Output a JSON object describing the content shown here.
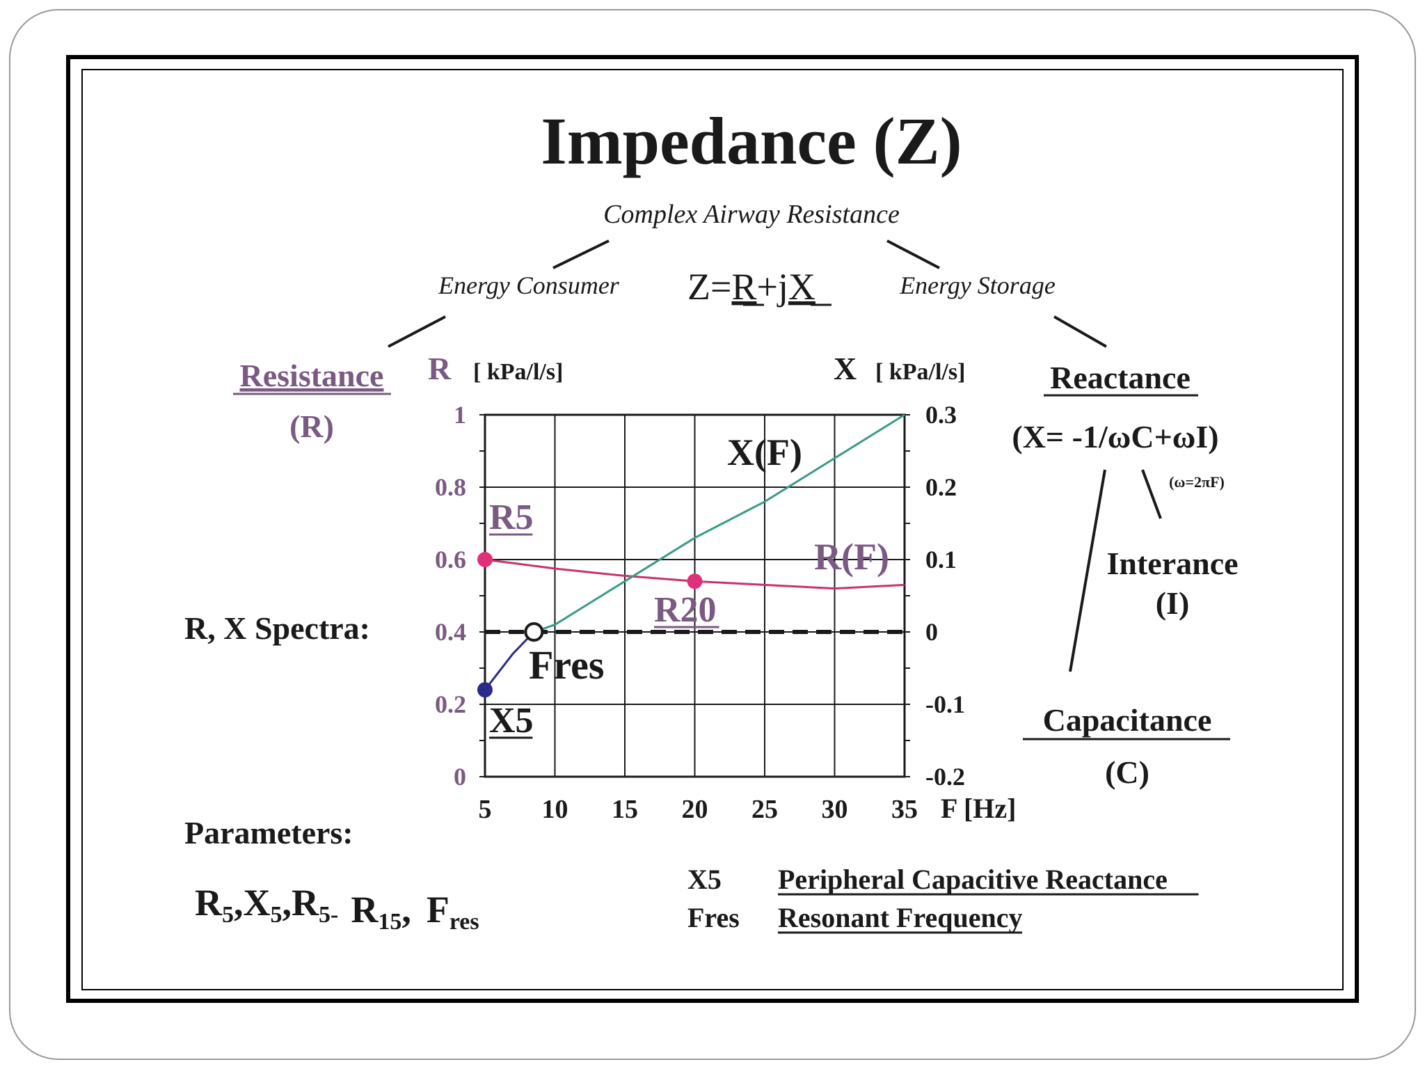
{
  "title": "Impedance (Z)",
  "subtitle": "Complex Airway Resistance",
  "energy_consumer": "Energy Consumer",
  "energy_storage": "Energy Storage",
  "formula": {
    "base": "Z=",
    "r": "R",
    "plus_j": "+j",
    "x": "X"
  },
  "resistance": {
    "label": "Resistance",
    "symbol": "(R)"
  },
  "reactance": {
    "label": "Reactance",
    "formula": "(X= -1/ωC+ωI)",
    "omega_note": "(ω=2πF)"
  },
  "interance": {
    "label": "Interance",
    "symbol": "(I)"
  },
  "capacitance": {
    "label": "Capacitance",
    "symbol": "(C)"
  },
  "spectra_label": "R, X Spectra:",
  "parameters": {
    "label": "Parameters:",
    "items": [
      {
        "main": "R",
        "sub": "5",
        "sep": ","
      },
      {
        "main": "X",
        "sub": "5",
        "sep": ","
      },
      {
        "main": "R",
        "sub": "5-",
        "sep": ""
      },
      {
        "main": "R",
        "sub": "15",
        "sep": ","
      },
      {
        "main": "F",
        "sub": "res",
        "sep": ""
      }
    ]
  },
  "definitions": [
    {
      "term": "X5",
      "desc": "Peripheral Capacitive Reactance"
    },
    {
      "term": "Fres",
      "desc": "Resonant Frequency"
    }
  ],
  "colors": {
    "accent_purple": "#7a5a82",
    "r_curve": "#c8326e",
    "x_curve": "#3a9a86",
    "x5_curve": "#2a2a8c",
    "r_point": "#e0307a",
    "x5_point": "#2a2a8c"
  },
  "chart_data": {
    "type": "line",
    "left_axis": {
      "symbol": "R",
      "unit": "[ kPa/l/s]",
      "range": [
        0,
        1
      ],
      "ticks": [
        "1",
        "0.8",
        "0.6",
        "0.4",
        "0.2",
        "0"
      ]
    },
    "right_axis": {
      "symbol": "X",
      "unit": "[ kPa/l/s]",
      "range": [
        -0.2,
        0.3
      ],
      "ticks": [
        "0.3",
        "0.2",
        "0.1",
        "0",
        "-0.1",
        "-0.2"
      ]
    },
    "x_axis": {
      "label": "F [Hz]",
      "range": [
        5,
        35
      ],
      "ticks": [
        "5",
        "10",
        "15",
        "20",
        "25",
        "30",
        "35"
      ]
    },
    "grid": true,
    "series": [
      {
        "name": "R(F)",
        "axis": "left",
        "x": [
          5,
          8,
          10,
          15,
          20,
          25,
          30,
          35
        ],
        "y": [
          0.6,
          0.585,
          0.575,
          0.555,
          0.54,
          0.53,
          0.52,
          0.53
        ]
      },
      {
        "name": "X(F)",
        "axis": "right",
        "x": [
          5,
          6,
          7,
          8.5,
          10,
          15,
          20,
          25,
          30,
          35
        ],
        "y": [
          -0.08,
          -0.055,
          -0.03,
          0,
          0.01,
          0.07,
          0.13,
          0.18,
          0.24,
          0.3
        ]
      }
    ],
    "zero_line": {
      "axis": "right",
      "value": 0,
      "style": "dashed"
    },
    "points": [
      {
        "label": "R5",
        "axis": "left",
        "x": 5,
        "y": 0.6
      },
      {
        "label": "R20",
        "axis": "left",
        "x": 20,
        "y": 0.54
      },
      {
        "label": "X5",
        "axis": "right",
        "x": 5,
        "y": -0.08
      },
      {
        "label": "Fres",
        "axis": "right",
        "x": 8.5,
        "y": 0
      }
    ]
  }
}
